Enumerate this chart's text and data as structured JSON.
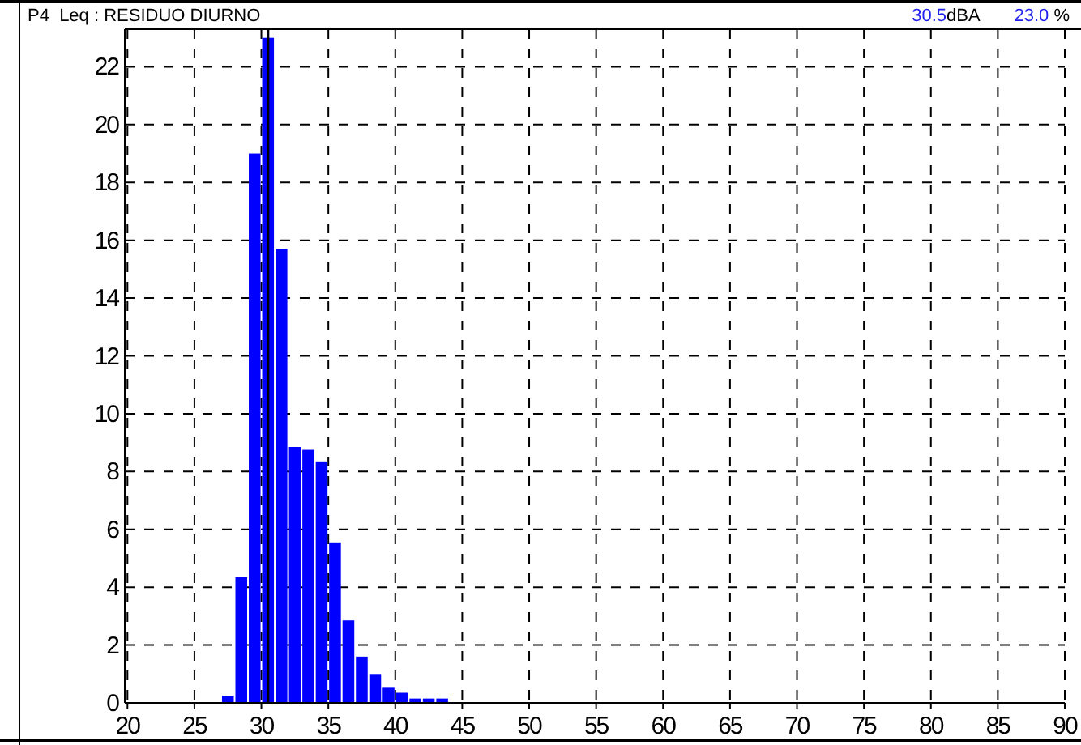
{
  "chart_data": {
    "type": "histogram",
    "title": "P4  Leq : RESIDUO DIURNO",
    "bins": [
      27,
      28,
      29,
      30,
      31,
      32,
      33,
      34,
      35,
      36,
      37,
      38,
      39,
      40,
      41,
      42,
      43,
      44
    ],
    "values": [
      0.25,
      4.35,
      19,
      23.0,
      15.7,
      8.85,
      8.75,
      8.35,
      5.55,
      2.85,
      1.6,
      1.0,
      0.55,
      0.35,
      0.15,
      0.15,
      0.15
    ],
    "color": "#0000ff",
    "xlim": [
      19.8,
      90
    ],
    "xticks": [
      20,
      25,
      30,
      35,
      40,
      45,
      50,
      55,
      60,
      65,
      70,
      75,
      80,
      85,
      90
    ],
    "ylim": [
      0,
      23.3
    ],
    "yticks": [
      0,
      2,
      4,
      6,
      8,
      10,
      12,
      14,
      16,
      18,
      20,
      22
    ],
    "grid": true,
    "ref_lines": [
      {
        "axis": "x",
        "value": 30.5,
        "color": "#000000"
      }
    ],
    "annotations": [
      "30.5dBA",
      "23.0 %"
    ]
  }
}
